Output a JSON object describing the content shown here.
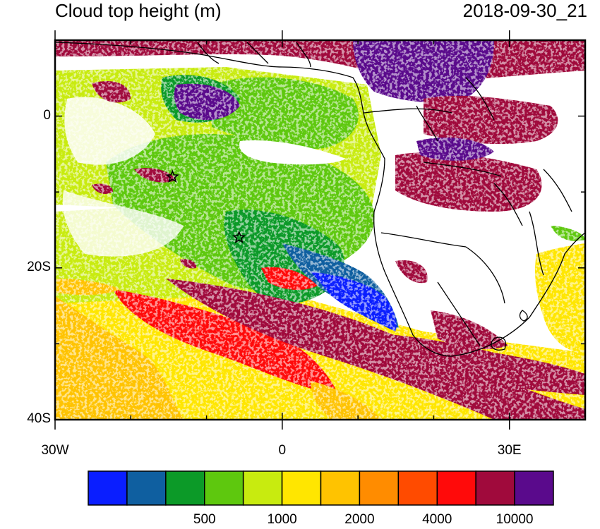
{
  "title": "Cloud top height (m)",
  "datetime": "2018-09-30_21",
  "axes": {
    "y_ticks": [
      {
        "value": 0,
        "label": "0"
      },
      {
        "value": -20,
        "label": "20S"
      },
      {
        "value": -40,
        "label": "40S"
      }
    ],
    "x_ticks": [
      {
        "value": -30,
        "label": "30W"
      },
      {
        "value": 0,
        "label": "0"
      },
      {
        "value": 30,
        "label": "30E"
      }
    ],
    "lon_range": [
      -30,
      40
    ],
    "lat_range": [
      -40,
      10
    ]
  },
  "colorbar": {
    "colors": [
      "#0a1eff",
      "#0f5fa0",
      "#0c9a28",
      "#5ec80e",
      "#c8eb0f",
      "#ffe600",
      "#ffc300",
      "#ff8c00",
      "#ff4b00",
      "#ff0a0a",
      "#a00a3c",
      "#5a0a8c"
    ],
    "labels": [
      {
        "index": 2,
        "text": "500"
      },
      {
        "index": 4,
        "text": "1000"
      },
      {
        "index": 6,
        "text": "2000"
      },
      {
        "index": 8,
        "text": "4000"
      },
      {
        "index": 10,
        "text": "10000"
      }
    ]
  },
  "markers": [
    {
      "name": "star-marker-north",
      "lon": -14.5,
      "lat": -8
    },
    {
      "name": "star-marker-south",
      "lon": -5.7,
      "lat": -16
    }
  ]
}
